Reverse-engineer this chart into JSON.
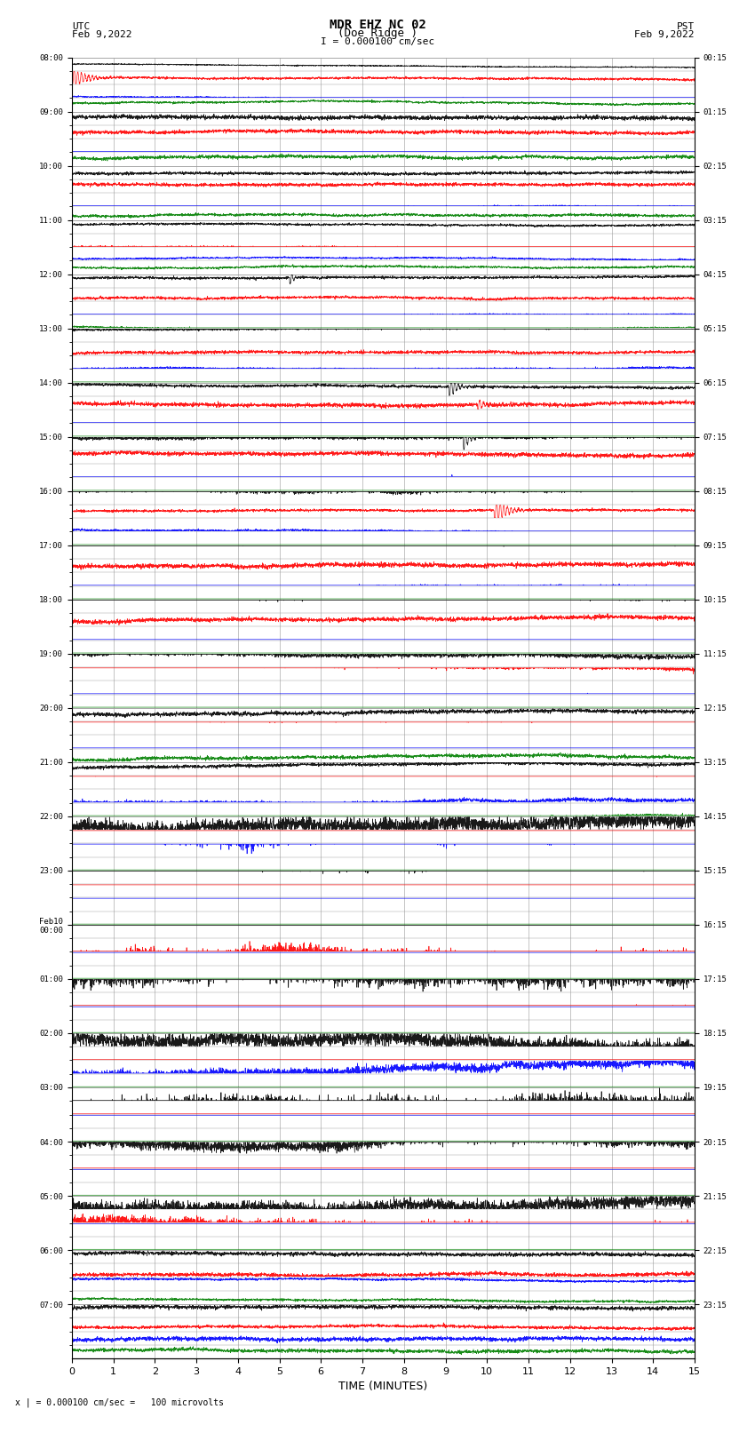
{
  "title_line1": "MDR EHZ NC 02",
  "title_line2": "(Doe Ridge )",
  "scale_text": "I = 0.000100 cm/sec",
  "footer_text": "x | = 0.000100 cm/sec =   100 microvolts",
  "xlabel": "TIME (MINUTES)",
  "background_color": "#ffffff",
  "grid_color": "#999999",
  "utc_times_major": [
    "08:00",
    "09:00",
    "10:00",
    "11:00",
    "12:00",
    "13:00",
    "14:00",
    "15:00",
    "16:00",
    "17:00",
    "18:00",
    "19:00",
    "20:00",
    "21:00",
    "22:00",
    "23:00",
    "Feb10\n00:00",
    "01:00",
    "02:00",
    "03:00",
    "04:00",
    "05:00",
    "06:00",
    "07:00"
  ],
  "pst_times_major": [
    "00:15",
    "01:15",
    "02:15",
    "03:15",
    "04:15",
    "05:15",
    "06:15",
    "07:15",
    "08:15",
    "09:15",
    "10:15",
    "11:15",
    "12:15",
    "13:15",
    "14:15",
    "15:15",
    "16:15",
    "17:15",
    "18:15",
    "19:15",
    "20:15",
    "21:15",
    "22:15",
    "23:15"
  ],
  "num_hours": 24,
  "traces_per_hour": 4,
  "num_cols": 15,
  "colors": [
    "black",
    "red",
    "blue",
    "green"
  ],
  "seed": 12345
}
